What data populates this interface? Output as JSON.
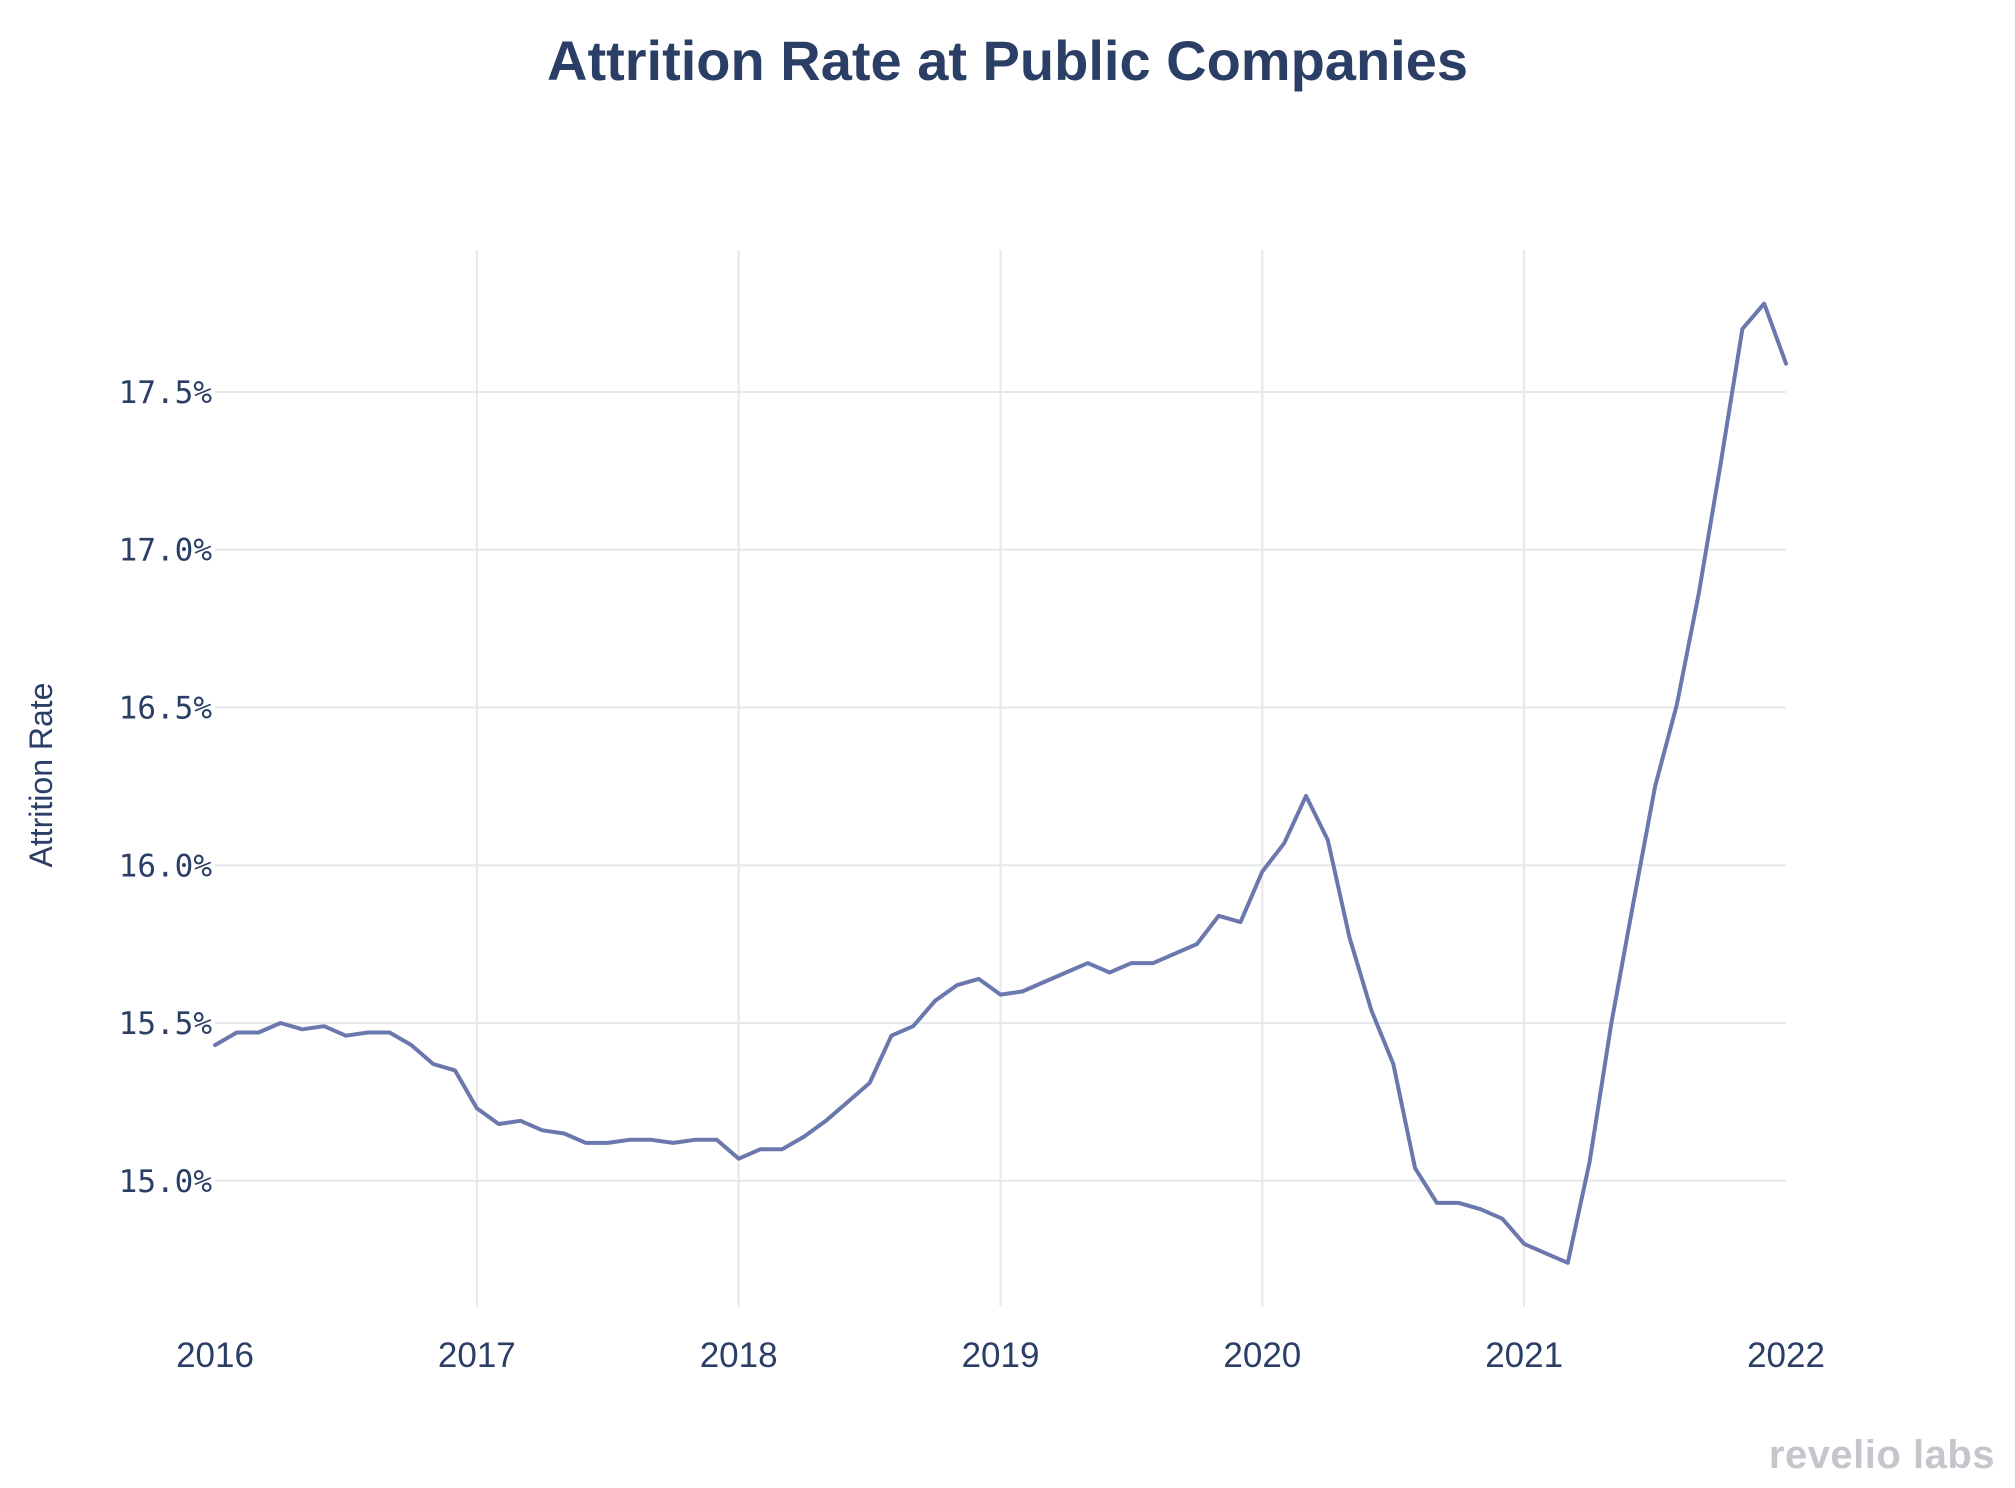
{
  "chart_data": {
    "type": "line",
    "title": "Attrition Rate at Public Companies",
    "xlabel": "",
    "ylabel": "Attrition Rate",
    "x_start_year": 2016,
    "points_per_year": 12,
    "xlim": [
      2016,
      2022
    ],
    "ylim": [
      14.6,
      17.95
    ],
    "x_ticks": [
      {
        "value": 2016,
        "label": "2016"
      },
      {
        "value": 2017,
        "label": "2017"
      },
      {
        "value": 2018,
        "label": "2018"
      },
      {
        "value": 2019,
        "label": "2019"
      },
      {
        "value": 2020,
        "label": "2020"
      },
      {
        "value": 2021,
        "label": "2021"
      },
      {
        "value": 2022,
        "label": "2022"
      }
    ],
    "y_ticks": [
      {
        "value": 15.0,
        "label": "15.0%"
      },
      {
        "value": 15.5,
        "label": "15.5%"
      },
      {
        "value": 16.0,
        "label": "16.0%"
      },
      {
        "value": 16.5,
        "label": "16.5%"
      },
      {
        "value": 17.0,
        "label": "17.0%"
      },
      {
        "value": 17.5,
        "label": "17.5%"
      }
    ],
    "grid": true,
    "series": [
      {
        "name": "Attrition Rate",
        "color": "#6a78ad",
        "values": [
          15.43,
          15.47,
          15.47,
          15.5,
          15.48,
          15.49,
          15.46,
          15.47,
          15.47,
          15.43,
          15.37,
          15.35,
          15.23,
          15.18,
          15.19,
          15.16,
          15.15,
          15.12,
          15.12,
          15.13,
          15.13,
          15.12,
          15.13,
          15.13,
          15.07,
          15.1,
          15.1,
          15.14,
          15.19,
          15.25,
          15.31,
          15.46,
          15.49,
          15.57,
          15.62,
          15.64,
          15.59,
          15.6,
          15.63,
          15.66,
          15.69,
          15.66,
          15.69,
          15.69,
          15.72,
          15.75,
          15.84,
          15.82,
          15.98,
          16.07,
          16.22,
          16.08,
          15.77,
          15.54,
          15.37,
          15.04,
          14.93,
          14.93,
          14.91,
          14.88,
          14.8,
          14.77,
          14.74,
          15.06,
          15.5,
          15.88,
          16.25,
          16.51,
          16.86,
          17.27,
          17.7,
          17.78,
          17.59
        ]
      }
    ]
  },
  "brand": {
    "watermark": "revelio labs",
    "title_color": "#2b3f66",
    "watermark_color": "#c4c6cc"
  }
}
